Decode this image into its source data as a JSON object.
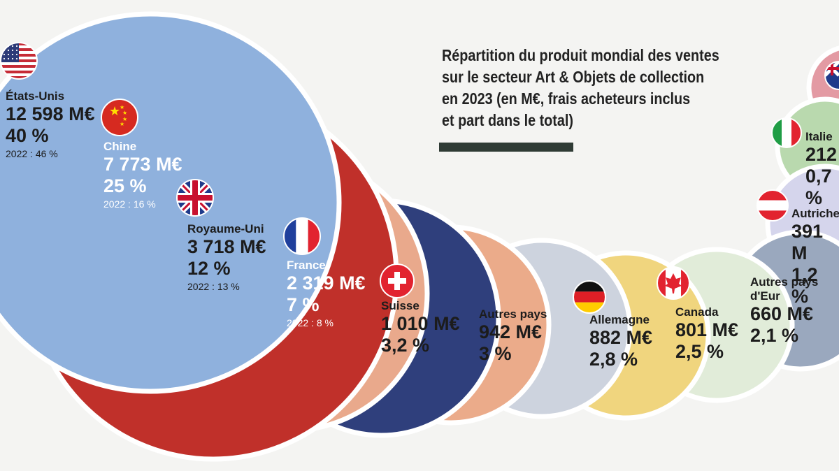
{
  "title_lines": [
    "Répartition du produit mondial des ventes",
    "sur le secteur Art & Objets de collection",
    "en 2023 (en M€, frais acheteurs inclus",
    "et part dans le total)"
  ],
  "chart_data": {
    "type": "bubble",
    "unit": "M€",
    "items": [
      {
        "country": "États-Unis",
        "value_text": "12 598 M€",
        "share_text": "40 %",
        "prev_text": "2022 : 46 %",
        "value": 12598,
        "share": 40,
        "prev_share": 46,
        "color": "#8fb1dd"
      },
      {
        "country": "Chine",
        "value_text": "7 773 M€",
        "share_text": "25 %",
        "prev_text": "2022 : 16 %",
        "value": 7773,
        "share": 25,
        "prev_share": 16,
        "color": "#c0302a"
      },
      {
        "country": "Royaume-Uni",
        "value_text": "3 718 M€",
        "share_text": "12 %",
        "prev_text": "2022 : 13 %",
        "value": 3718,
        "share": 12,
        "prev_share": 13,
        "color": "#e9a98c"
      },
      {
        "country": "France",
        "value_text": "2 319 M€",
        "share_text": "7 %",
        "prev_text": "2022 : 8 %",
        "value": 2319,
        "share": 7,
        "prev_share": 8,
        "color": "#2f3f7c"
      },
      {
        "country": "Suisse",
        "value_text": "1 010 M€",
        "share_text": "3,2 %",
        "prev_text": "",
        "value": 1010,
        "share": 3.2,
        "color": "#ebab8a"
      },
      {
        "country": "Autres pays",
        "value_text": "942 M€",
        "share_text": "3 %",
        "prev_text": "",
        "value": 942,
        "share": 3,
        "color": "#cdd3de"
      },
      {
        "country": "Allemagne",
        "value_text": "882 M€",
        "share_text": "2,8 %",
        "prev_text": "",
        "value": 882,
        "share": 2.8,
        "color": "#f0d57e"
      },
      {
        "country": "Canada",
        "value_text": "801 M€",
        "share_text": "2,5 %",
        "prev_text": "",
        "value": 801,
        "share": 2.5,
        "color": "#e1ecd9"
      },
      {
        "country": "Autres pays d'Eur",
        "value_text": "660 M€",
        "share_text": "2,1 %",
        "prev_text": "",
        "value": 660,
        "share": 2.1,
        "color": "#9aa8be"
      },
      {
        "country": "Autriche",
        "value_text": "391 M",
        "share_text": "1,2 %",
        "prev_text": "",
        "value": 391,
        "share": 1.2,
        "color": "#d5d5ec"
      },
      {
        "country": "Italie",
        "value_text": "212",
        "share_text": "0,7 %",
        "prev_text": "",
        "value": 212,
        "share": 0.7,
        "color": "#b9d9ae"
      },
      {
        "country": "",
        "value_text": "",
        "share_text": "",
        "prev_text": "",
        "value": null,
        "share": null,
        "color": "#e39aa3"
      }
    ]
  },
  "flags": {
    "usa": "usa-flag-icon",
    "china": "china-flag-icon",
    "uk": "uk-flag-icon",
    "france": "france-flag-icon",
    "switzerland": "switzerland-flag-icon",
    "germany": "germany-flag-icon",
    "canada": "canada-flag-icon",
    "austria": "austria-flag-icon",
    "italy": "italy-flag-icon",
    "australia": "australia-flag-icon"
  }
}
